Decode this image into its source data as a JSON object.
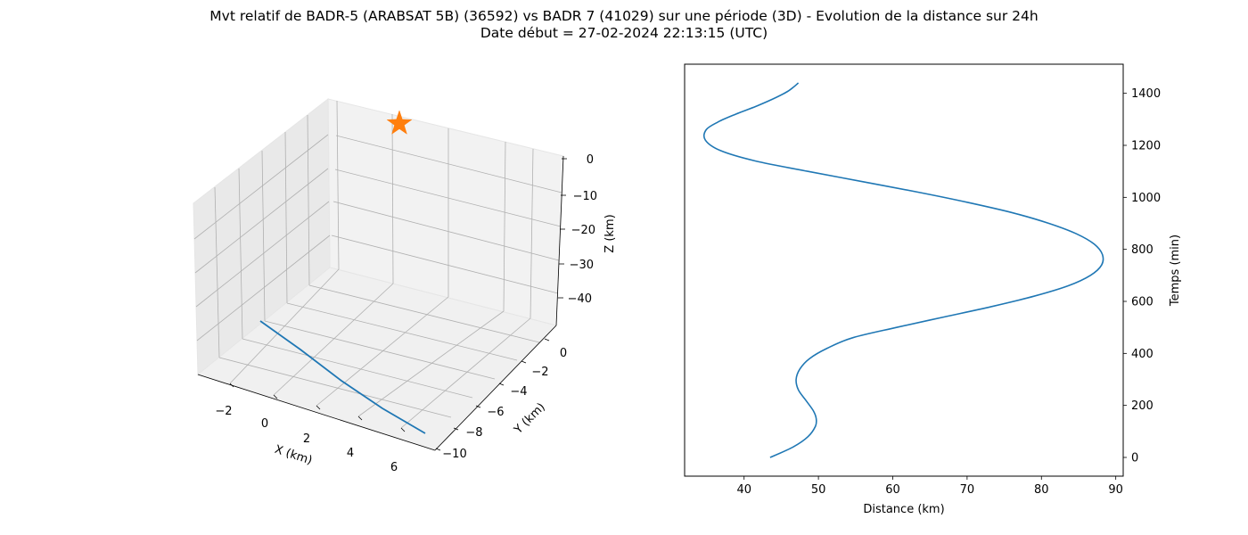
{
  "title": {
    "line1": "Mvt relatif de BADR-5 (ARABSAT 5B) (36592) vs BADR 7 (41029) sur une période (3D) - Evolution de la distance sur 24h",
    "line2": "Date début = 27-02-2024 22:13:15 (UTC)"
  },
  "colors": {
    "trajectory": "#1f77b4",
    "marker": "#ff7f0e",
    "grid": "#b0b0b0"
  },
  "chart_data": [
    {
      "type": "line",
      "projection": "3d",
      "xlabel": "X (km)",
      "ylabel": "Y (km)",
      "zlabel": "Z (km)",
      "x_ticks": [
        -2,
        0,
        2,
        4,
        6
      ],
      "y_ticks": [
        0,
        -2,
        -4,
        -6,
        -8,
        -10
      ],
      "z_ticks": [
        0,
        -10,
        -20,
        -30,
        -40
      ],
      "xlim": [
        -3.5,
        7.5
      ],
      "ylim": [
        -11,
        1
      ],
      "zlim": [
        -45,
        2
      ],
      "grid": true,
      "series": [
        {
          "x": [
            0.0,
            1.6,
            3.2,
            4.8,
            6.4
          ],
          "y": [
            -1.1,
            -2.2,
            -3.3,
            -4.4,
            -5.5
          ],
          "z": [
            -44,
            -44,
            -44,
            -44,
            -44
          ]
        }
      ],
      "marker": {
        "symbol": "star",
        "x": 0.0,
        "y": 0.0,
        "z": 0.0
      }
    },
    {
      "type": "line",
      "xlabel": "Distance (km)",
      "ylabel": "Temps (min)",
      "x_ticks": [
        40,
        50,
        60,
        70,
        80,
        90
      ],
      "y_ticks": [
        0,
        200,
        400,
        600,
        800,
        1000,
        1200,
        1400
      ],
      "xlim": [
        32,
        91
      ],
      "ylim": [
        -72,
        1512
      ],
      "grid": false,
      "series": [
        {
          "time": [
            0,
            40,
            80,
            120,
            150,
            180,
            220,
            260,
            300,
            340,
            380,
            420,
            460,
            500,
            540,
            580,
            620,
            660,
            700,
            740,
            780,
            820,
            860,
            900,
            940,
            980,
            1020,
            1060,
            1100,
            1140,
            1180,
            1220,
            1260,
            1290,
            1320,
            1350,
            1380,
            1410,
            1440
          ],
          "distance": [
            43.5,
            46.6,
            48.6,
            49.6,
            49.7,
            49.3,
            48.3,
            47.3,
            47.0,
            47.5,
            48.8,
            51.2,
            54.6,
            60.5,
            66.9,
            73.3,
            79.0,
            83.6,
            86.6,
            88.1,
            88.2,
            87.1,
            84.7,
            81.0,
            76.2,
            70.2,
            63.4,
            56.0,
            48.6,
            41.5,
            36.8,
            34.8,
            34.9,
            36.5,
            38.9,
            41.6,
            44.0,
            46.0,
            47.3
          ]
        }
      ]
    }
  ]
}
